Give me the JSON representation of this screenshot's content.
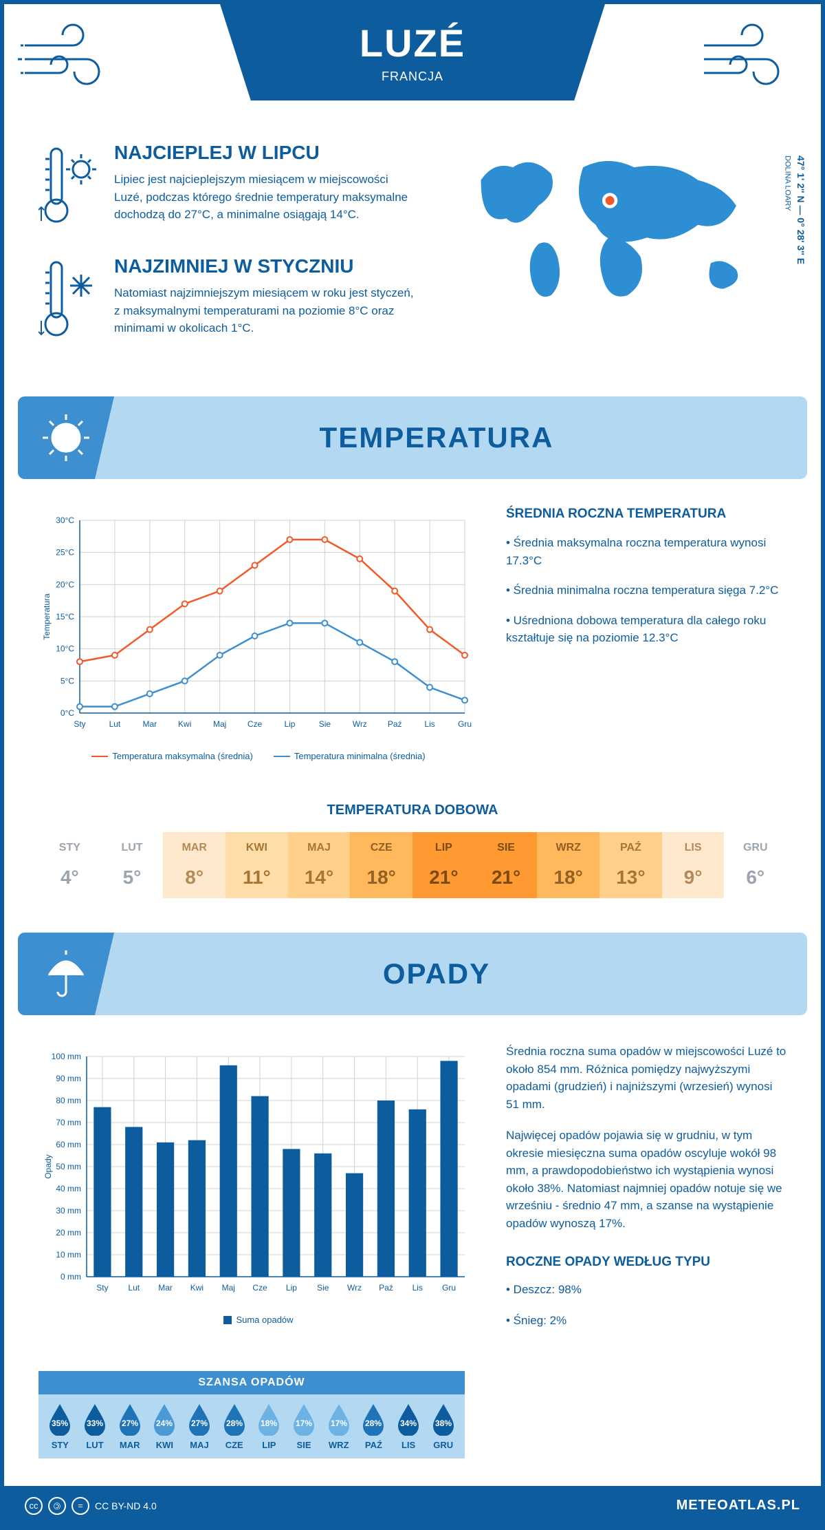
{
  "header": {
    "city": "LUZÉ",
    "country": "FRANCJA",
    "coords": "47° 1' 2'' N — 0° 28' 3'' E",
    "region": "DOLINA LOARY",
    "wind_stroke": "#0d5c9e"
  },
  "colors": {
    "primary": "#0d5c9e",
    "light_blue": "#b3d9f2",
    "mid_blue": "#3d8fcf",
    "orange_line": "#f05a28",
    "blue_line": "#3d8fcf",
    "grid": "#d0d0d0",
    "map_fill": "#2e8ed4",
    "marker": "#f05a28",
    "marker_ring": "#ffffff"
  },
  "intro": {
    "warm": {
      "title": "NAJCIEPLEJ W LIPCU",
      "text": "Lipiec jest najcieplejszym miesiącem w miejscowości Luzé, podczas którego średnie temperatury maksymalne dochodzą do 27°C, a minimalne osiągają 14°C."
    },
    "cold": {
      "title": "NAJZIMNIEJ W STYCZNIU",
      "text": "Natomiast najzimniejszym miesiącem w roku jest styczeń, z maksymalnymi temperaturami na poziomie 8°C oraz minimami w okolicach 1°C."
    }
  },
  "temp_section": {
    "heading": "TEMPERATURA",
    "ylabel": "Temperatura",
    "months": [
      "Sty",
      "Lut",
      "Mar",
      "Kwi",
      "Maj",
      "Cze",
      "Lip",
      "Sie",
      "Wrz",
      "Paź",
      "Lis",
      "Gru"
    ],
    "max_series": [
      8,
      9,
      13,
      17,
      19,
      23,
      27,
      27,
      24,
      19,
      13,
      9
    ],
    "min_series": [
      1,
      1,
      3,
      5,
      9,
      12,
      14,
      14,
      11,
      8,
      4,
      2
    ],
    "y_ticks": [
      0,
      5,
      10,
      15,
      20,
      25,
      30
    ],
    "legend_max": "Temperatura maksymalna (średnia)",
    "legend_min": "Temperatura minimalna (średnia)",
    "stats_title": "ŚREDNIA ROCZNA TEMPERATURA",
    "stat1": "• Średnia maksymalna roczna temperatura wynosi 17.3°C",
    "stat2": "• Średnia minimalna roczna temperatura sięga 7.2°C",
    "stat3": "• Uśredniona dobowa temperatura dla całego roku kształtuje się na poziomie 12.3°C"
  },
  "daily": {
    "title": "TEMPERATURA DOBOWA",
    "months": [
      "STY",
      "LUT",
      "MAR",
      "KWI",
      "MAJ",
      "CZE",
      "LIP",
      "SIE",
      "WRZ",
      "PAŹ",
      "LIS",
      "GRU"
    ],
    "values": [
      "4°",
      "5°",
      "8°",
      "11°",
      "14°",
      "18°",
      "21°",
      "21°",
      "18°",
      "13°",
      "9°",
      "6°"
    ],
    "bg_colors": [
      "#ffffff",
      "#ffffff",
      "#ffe9ce",
      "#ffdda8",
      "#ffd08a",
      "#ffb95c",
      "#ff9a33",
      "#ff9a33",
      "#ffb95c",
      "#ffd08a",
      "#ffe9ce",
      "#ffffff"
    ],
    "text_colors": [
      "#9aa5af",
      "#9aa5af",
      "#b38a55",
      "#a67535",
      "#a67535",
      "#946022",
      "#7a4a10",
      "#7a4a10",
      "#946022",
      "#a67535",
      "#b38a55",
      "#9aa5af"
    ]
  },
  "precip_section": {
    "heading": "OPADY",
    "ylabel": "Opady",
    "months": [
      "Sty",
      "Lut",
      "Mar",
      "Kwi",
      "Maj",
      "Cze",
      "Lip",
      "Sie",
      "Wrz",
      "Paź",
      "Lis",
      "Gru"
    ],
    "values": [
      77,
      68,
      61,
      62,
      96,
      82,
      58,
      56,
      47,
      80,
      76,
      98
    ],
    "y_ticks": [
      0,
      10,
      20,
      30,
      40,
      50,
      60,
      70,
      80,
      90,
      100
    ],
    "bar_color": "#0d5c9e",
    "legend": "Suma opadów",
    "text1": "Średnia roczna suma opadów w miejscowości Luzé to około 854 mm. Różnica pomiędzy najwyższymi opadami (grudzień) i najniższymi (wrzesień) wynosi 51 mm.",
    "text2": "Najwięcej opadów pojawia się w grudniu, w tym okresie miesięczna suma opadów oscyluje wokół 98 mm, a prawdopodobieństwo ich wystąpienia wynosi około 38%. Natomiast najmniej opadów notuje się we wrześniu - średnio 47 mm, a szanse na wystąpienie opadów wynoszą 17%.",
    "type_title": "ROCZNE OPADY WEDŁUG TYPU",
    "type_rain": "• Deszcz: 98%",
    "type_snow": "• Śnieg: 2%"
  },
  "chance": {
    "title": "SZANSA OPADÓW",
    "months": [
      "STY",
      "LUT",
      "MAR",
      "KWI",
      "MAJ",
      "CZE",
      "LIP",
      "SIE",
      "WRZ",
      "PAŹ",
      "LIS",
      "GRU"
    ],
    "values": [
      "35%",
      "33%",
      "27%",
      "24%",
      "27%",
      "28%",
      "18%",
      "17%",
      "17%",
      "28%",
      "34%",
      "38%"
    ],
    "drop_colors": [
      "#0d5c9e",
      "#0d5c9e",
      "#1f74b8",
      "#4b9ad6",
      "#1f74b8",
      "#1f74b8",
      "#6cb3e4",
      "#6cb3e4",
      "#6cb3e4",
      "#1f74b8",
      "#0d5c9e",
      "#0d5c9e"
    ]
  },
  "footer": {
    "license": "CC BY-ND 4.0",
    "brand": "METEOATLAS.PL"
  }
}
